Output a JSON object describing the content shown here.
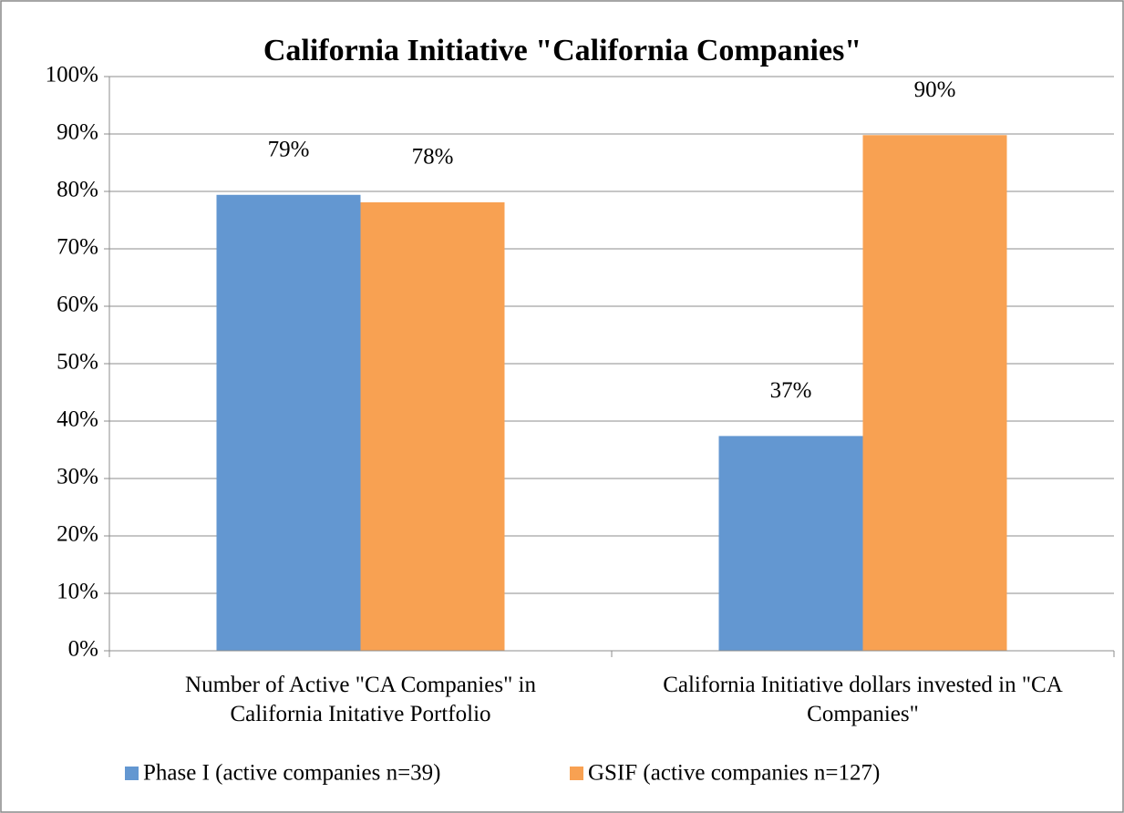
{
  "chart_data": {
    "type": "bar",
    "title": "California Initiative \"California Companies\"",
    "categories": [
      "Number of Active \"CA Companies\" in California Initative Portfolio",
      "California Initiative dollars invested in \"CA Companies\""
    ],
    "series": [
      {
        "name": "Phase I (active companies n=39)",
        "color": "#6397d1",
        "values": [
          79.4,
          37.4
        ],
        "value_labels": [
          "79%",
          "37%"
        ]
      },
      {
        "name": "GSIF (active companies n=127)",
        "color": "#f8a152",
        "values": [
          78.1,
          89.8
        ],
        "value_labels": [
          "78%",
          "90%"
        ]
      }
    ],
    "ylim": [
      0,
      100
    ],
    "yticks": [
      {
        "value": 0,
        "label": "0%"
      },
      {
        "value": 10,
        "label": "10%"
      },
      {
        "value": 20,
        "label": "20%"
      },
      {
        "value": 30,
        "label": "30%"
      },
      {
        "value": 40,
        "label": "40%"
      },
      {
        "value": 50,
        "label": "50%"
      },
      {
        "value": 60,
        "label": "60%"
      },
      {
        "value": 70,
        "label": "70%"
      },
      {
        "value": 80,
        "label": "80%"
      },
      {
        "value": 90,
        "label": "90%"
      },
      {
        "value": 100,
        "label": "100%"
      }
    ],
    "grid": true,
    "legend": "bottom"
  }
}
